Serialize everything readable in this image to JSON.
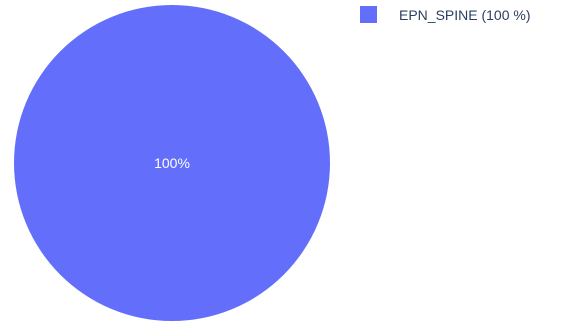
{
  "chart_data": {
    "type": "pie",
    "slices": [
      {
        "label": "EPN_SPINE",
        "value": 100,
        "percent_label": "100%",
        "legend_label": "EPN_SPINE (100 %)",
        "color": "#636efa"
      }
    ],
    "legend_position": "top-right"
  }
}
